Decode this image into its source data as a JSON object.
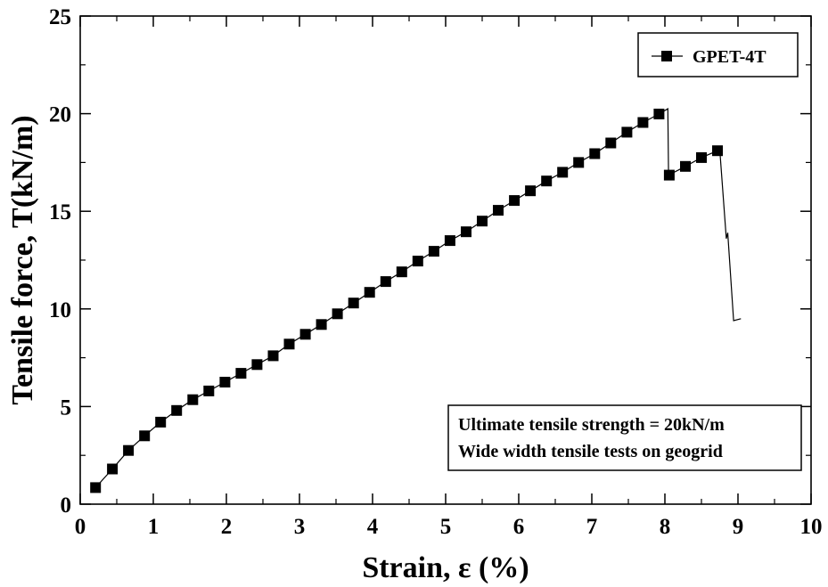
{
  "chart_data": {
    "type": "line",
    "xlabel": "Strain, ε (%)",
    "ylabel": "Tensile force, T(kN/m)",
    "xlim": [
      0,
      10
    ],
    "ylim": [
      0,
      25
    ],
    "x_ticks": [
      "0",
      "1",
      "2",
      "3",
      "4",
      "5",
      "6",
      "7",
      "8",
      "9",
      "10"
    ],
    "y_ticks": [
      "0",
      "5",
      "10",
      "15",
      "20",
      "25"
    ],
    "grid": false,
    "legend_position": "top-right",
    "series": [
      {
        "name": "GPET-4T",
        "color": "#000000",
        "marker": "square",
        "markers": [
          [
            0.21,
            0.85
          ],
          [
            0.44,
            1.8
          ],
          [
            0.66,
            2.75
          ],
          [
            0.88,
            3.5
          ],
          [
            1.1,
            4.2
          ],
          [
            1.32,
            4.8
          ],
          [
            1.54,
            5.35
          ],
          [
            1.76,
            5.8
          ],
          [
            1.98,
            6.25
          ],
          [
            2.2,
            6.7
          ],
          [
            2.42,
            7.15
          ],
          [
            2.64,
            7.6
          ],
          [
            2.86,
            8.2
          ],
          [
            3.08,
            8.7
          ],
          [
            3.3,
            9.2
          ],
          [
            3.52,
            9.75
          ],
          [
            3.74,
            10.3
          ],
          [
            3.96,
            10.85
          ],
          [
            4.18,
            11.4
          ],
          [
            4.4,
            11.9
          ],
          [
            4.62,
            12.45
          ],
          [
            4.84,
            12.95
          ],
          [
            5.06,
            13.5
          ],
          [
            5.28,
            13.95
          ],
          [
            5.5,
            14.5
          ],
          [
            5.72,
            15.05
          ],
          [
            5.94,
            15.55
          ],
          [
            6.16,
            16.05
          ],
          [
            6.38,
            16.55
          ],
          [
            6.6,
            17.0
          ],
          [
            6.82,
            17.5
          ],
          [
            7.04,
            17.95
          ],
          [
            7.26,
            18.5
          ],
          [
            7.48,
            19.05
          ],
          [
            7.7,
            19.55
          ],
          [
            7.92,
            19.98
          ],
          [
            8.06,
            16.85
          ],
          [
            8.28,
            17.3
          ],
          [
            8.5,
            17.75
          ],
          [
            8.72,
            18.1
          ]
        ],
        "line": [
          [
            0.21,
            0.85
          ],
          [
            0.44,
            1.8
          ],
          [
            0.66,
            2.75
          ],
          [
            0.88,
            3.5
          ],
          [
            1.1,
            4.2
          ],
          [
            1.32,
            4.8
          ],
          [
            1.54,
            5.35
          ],
          [
            1.76,
            5.8
          ],
          [
            1.98,
            6.25
          ],
          [
            2.2,
            6.7
          ],
          [
            2.42,
            7.15
          ],
          [
            2.64,
            7.6
          ],
          [
            2.86,
            8.2
          ],
          [
            3.08,
            8.7
          ],
          [
            3.3,
            9.2
          ],
          [
            3.52,
            9.75
          ],
          [
            3.74,
            10.3
          ],
          [
            3.96,
            10.85
          ],
          [
            4.18,
            11.4
          ],
          [
            4.4,
            11.9
          ],
          [
            4.62,
            12.45
          ],
          [
            4.84,
            12.95
          ],
          [
            5.06,
            13.5
          ],
          [
            5.28,
            13.95
          ],
          [
            5.5,
            14.5
          ],
          [
            5.72,
            15.05
          ],
          [
            5.94,
            15.55
          ],
          [
            6.16,
            16.05
          ],
          [
            6.38,
            16.55
          ],
          [
            6.6,
            17.0
          ],
          [
            6.82,
            17.5
          ],
          [
            7.04,
            17.95
          ],
          [
            7.26,
            18.5
          ],
          [
            7.48,
            19.05
          ],
          [
            7.7,
            19.55
          ],
          [
            7.92,
            19.98
          ],
          [
            8.04,
            20.25
          ],
          [
            8.05,
            16.85
          ],
          [
            8.28,
            17.3
          ],
          [
            8.5,
            17.75
          ],
          [
            8.72,
            18.1
          ],
          [
            8.75,
            18.2
          ],
          [
            8.84,
            13.6
          ],
          [
            8.86,
            13.9
          ],
          [
            8.94,
            9.4
          ],
          [
            9.04,
            9.5
          ]
        ]
      }
    ],
    "annotations": [
      "Ultimate tensile strength = 20kN/m",
      "Wide width tensile tests on geogrid"
    ]
  }
}
